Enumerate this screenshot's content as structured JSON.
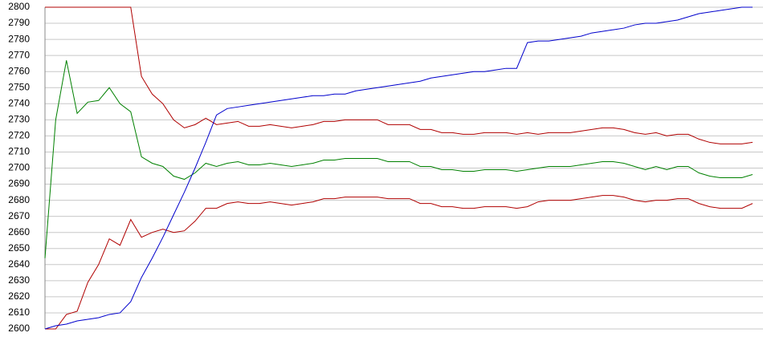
{
  "chart_data": {
    "type": "line",
    "categories": [
      null,
      null,
      null,
      null,
      null,
      null,
      null,
      null,
      null,
      null,
      null,
      null,
      null,
      null,
      null,
      null,
      null,
      null,
      null,
      null,
      null,
      null,
      null,
      null,
      null,
      null,
      null,
      null,
      null,
      null,
      null,
      null,
      null,
      null,
      null,
      null,
      null,
      null,
      null,
      null,
      null,
      null,
      null,
      null,
      null,
      null,
      null,
      null,
      null,
      null,
      null,
      null,
      null,
      null,
      null,
      null,
      null,
      null,
      null,
      null,
      null,
      null,
      null,
      null,
      null,
      null,
      null
    ],
    "series": [
      {
        "color": "#b00000",
        "values": [
          2800,
          2800,
          2800,
          2800,
          2800,
          2800,
          2800,
          2800,
          2800,
          2757,
          2746,
          2740,
          2730,
          2725,
          2727,
          2731,
          2727,
          2728,
          2729,
          2726,
          2726,
          2727,
          2726,
          2725,
          2726,
          2727,
          2729,
          2729,
          2730,
          2730,
          2730,
          2730,
          2727,
          2727,
          2727,
          2724,
          2724,
          2722,
          2722,
          2721,
          2721,
          2722,
          2722,
          2722,
          2721,
          2722,
          2721,
          2722,
          2722,
          2722,
          2723,
          2724,
          2725,
          2725,
          2724,
          2722,
          2721,
          2722,
          2720,
          2721,
          2721,
          2718,
          2716,
          2715,
          2715,
          2715,
          2716
        ]
      },
      {
        "color": "#008000",
        "values": [
          2644,
          2730,
          2767,
          2734,
          2741,
          2742,
          2750,
          2740,
          2735,
          2707,
          2703,
          2701,
          2695,
          2693,
          2697,
          2703,
          2701,
          2703,
          2704,
          2702,
          2702,
          2703,
          2702,
          2701,
          2702,
          2703,
          2705,
          2705,
          2706,
          2706,
          2706,
          2706,
          2704,
          2704,
          2704,
          2701,
          2701,
          2699,
          2699,
          2698,
          2698,
          2699,
          2699,
          2699,
          2698,
          2699,
          2700,
          2701,
          2701,
          2701,
          2702,
          2703,
          2704,
          2704,
          2703,
          2701,
          2699,
          2701,
          2699,
          2701,
          2701,
          2697,
          2695,
          2694,
          2694,
          2694,
          2696
        ]
      },
      {
        "color": "#b00000",
        "values": [
          2600,
          2600,
          2609,
          2611,
          2629,
          2640,
          2656,
          2652,
          2668,
          2657,
          2660,
          2662,
          2660,
          2661,
          2667,
          2675,
          2675,
          2678,
          2679,
          2678,
          2678,
          2679,
          2678,
          2677,
          2678,
          2679,
          2681,
          2681,
          2682,
          2682,
          2682,
          2682,
          2681,
          2681,
          2681,
          2678,
          2678,
          2676,
          2676,
          2675,
          2675,
          2676,
          2676,
          2676,
          2675,
          2676,
          2679,
          2680,
          2680,
          2680,
          2681,
          2682,
          2683,
          2683,
          2682,
          2680,
          2679,
          2680,
          2680,
          2681,
          2681,
          2678,
          2676,
          2675,
          2675,
          2675,
          2678
        ]
      },
      {
        "color": "#0000cc",
        "values": [
          2600,
          2602,
          2603,
          2605,
          2606,
          2607,
          2609,
          2610,
          2617,
          2632,
          2644,
          2657,
          2671,
          2685,
          2700,
          2716,
          2733,
          2737,
          2738,
          2739,
          2740,
          2741,
          2742,
          2743,
          2744,
          2745,
          2745,
          2746,
          2746,
          2748,
          2749,
          2750,
          2751,
          2752,
          2753,
          2754,
          2756,
          2757,
          2758,
          2759,
          2760,
          2760,
          2761,
          2762,
          2762,
          2778,
          2779,
          2779,
          2780,
          2781,
          2782,
          2784,
          2785,
          2786,
          2787,
          2789,
          2790,
          2790,
          2791,
          2792,
          2794,
          2796,
          2797,
          2798,
          2799,
          2800,
          2800
        ]
      }
    ],
    "ylim": [
      2600,
      2800
    ],
    "yticks": [
      2600,
      2610,
      2620,
      2630,
      2640,
      2650,
      2660,
      2670,
      2680,
      2690,
      2700,
      2710,
      2720,
      2730,
      2740,
      2750,
      2760,
      2770,
      2780,
      2790,
      2800
    ],
    "grid": true
  }
}
